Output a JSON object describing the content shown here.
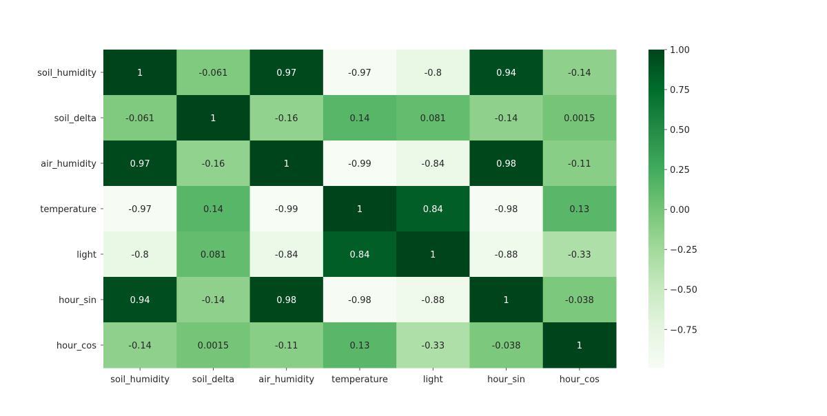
{
  "chart_data": {
    "type": "heatmap",
    "title": "",
    "xlabel": "",
    "ylabel": "",
    "x_labels": [
      "soil_humidity",
      "soil_delta",
      "air_humidity",
      "temperature",
      "light",
      "hour_sin",
      "hour_cos"
    ],
    "y_labels": [
      "soil_humidity",
      "soil_delta",
      "air_humidity",
      "temperature",
      "light",
      "hour_sin",
      "hour_cos"
    ],
    "values": [
      [
        1,
        -0.061,
        0.97,
        -0.97,
        -0.8,
        0.94,
        -0.14
      ],
      [
        -0.061,
        1,
        -0.16,
        0.14,
        0.081,
        -0.14,
        0.0015
      ],
      [
        0.97,
        -0.16,
        1,
        -0.99,
        -0.84,
        0.98,
        -0.11
      ],
      [
        -0.97,
        0.14,
        -0.99,
        1,
        0.84,
        -0.98,
        0.13
      ],
      [
        -0.8,
        0.081,
        -0.84,
        0.84,
        1,
        -0.88,
        -0.33
      ],
      [
        0.94,
        -0.14,
        0.98,
        -0.98,
        -0.88,
        1,
        -0.038
      ],
      [
        -0.14,
        0.0015,
        -0.11,
        0.13,
        -0.33,
        -0.038,
        1
      ]
    ],
    "annotations": [
      [
        "1",
        "-0.061",
        "0.97",
        "-0.97",
        "-0.8",
        "0.94",
        "-0.14"
      ],
      [
        "-0.061",
        "1",
        "-0.16",
        "0.14",
        "0.081",
        "-0.14",
        "0.0015"
      ],
      [
        "0.97",
        "-0.16",
        "1",
        "-0.99",
        "-0.84",
        "0.98",
        "-0.11"
      ],
      [
        "-0.97",
        "0.14",
        "-0.99",
        "1",
        "0.84",
        "-0.98",
        "0.13"
      ],
      [
        "-0.8",
        "0.081",
        "-0.84",
        "0.84",
        "1",
        "-0.88",
        "-0.33"
      ],
      [
        "0.94",
        "-0.14",
        "0.98",
        "-0.98",
        "-0.88",
        "1",
        "-0.038"
      ],
      [
        "-0.14",
        "0.0015",
        "-0.11",
        "0.13",
        "-0.33",
        "-0.038",
        "1"
      ]
    ],
    "colorbar": {
      "min": -0.99,
      "max": 1.0,
      "ticks": [
        1.0,
        0.75,
        0.5,
        0.25,
        0.0,
        -0.25,
        -0.5,
        -0.75
      ],
      "tick_labels": [
        "1.00",
        "0.75",
        "0.50",
        "0.25",
        "0.00",
        "−0.25",
        "−0.50",
        "−0.75"
      ],
      "colormap": "Greens",
      "colormap_stops": [
        "#f7fcf5",
        "#e5f5e0",
        "#c7e9c0",
        "#a1d99b",
        "#74c476",
        "#41ab5d",
        "#238b45",
        "#006d2c",
        "#00441b"
      ]
    },
    "grid": false,
    "legend": "colorbar-right"
  }
}
